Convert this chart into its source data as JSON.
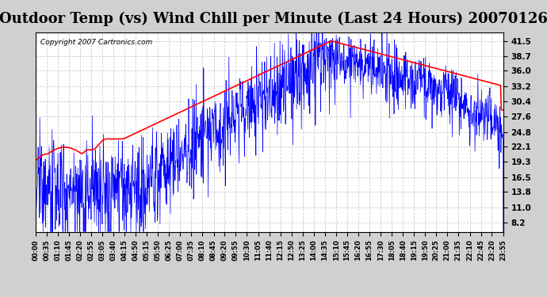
{
  "title": "Outdoor Temp (vs) Wind Chill per Minute (Last 24 Hours) 20070126",
  "copyright_text": "Copyright 2007 Cartronics.com",
  "yticks": [
    8.2,
    11.0,
    13.8,
    16.5,
    19.3,
    22.1,
    24.8,
    27.6,
    30.4,
    33.2,
    36.0,
    38.7,
    41.5
  ],
  "ylim": [
    6.5,
    43.0
  ],
  "xtick_labels": [
    "00:00",
    "00:35",
    "01:10",
    "01:45",
    "02:20",
    "02:55",
    "03:05",
    "03:40",
    "04:15",
    "04:50",
    "05:15",
    "05:50",
    "06:25",
    "07:00",
    "07:35",
    "08:10",
    "08:45",
    "09:20",
    "09:55",
    "10:30",
    "11:05",
    "11:40",
    "12:15",
    "12:50",
    "13:25",
    "14:00",
    "14:35",
    "15:10",
    "15:45",
    "16:20",
    "16:55",
    "17:30",
    "18:05",
    "18:40",
    "19:15",
    "19:50",
    "20:25",
    "21:00",
    "21:35",
    "22:10",
    "22:45",
    "23:20",
    "23:55"
  ],
  "background_color": "#ffffff",
  "plot_bg_color": "#ffffff",
  "grid_color": "#cccccc",
  "title_fontsize": 13,
  "title_color": "#000000",
  "outer_bg_color": "#d0d0d0",
  "red_line_color": "#ff0000",
  "blue_line_color": "#0000ff"
}
